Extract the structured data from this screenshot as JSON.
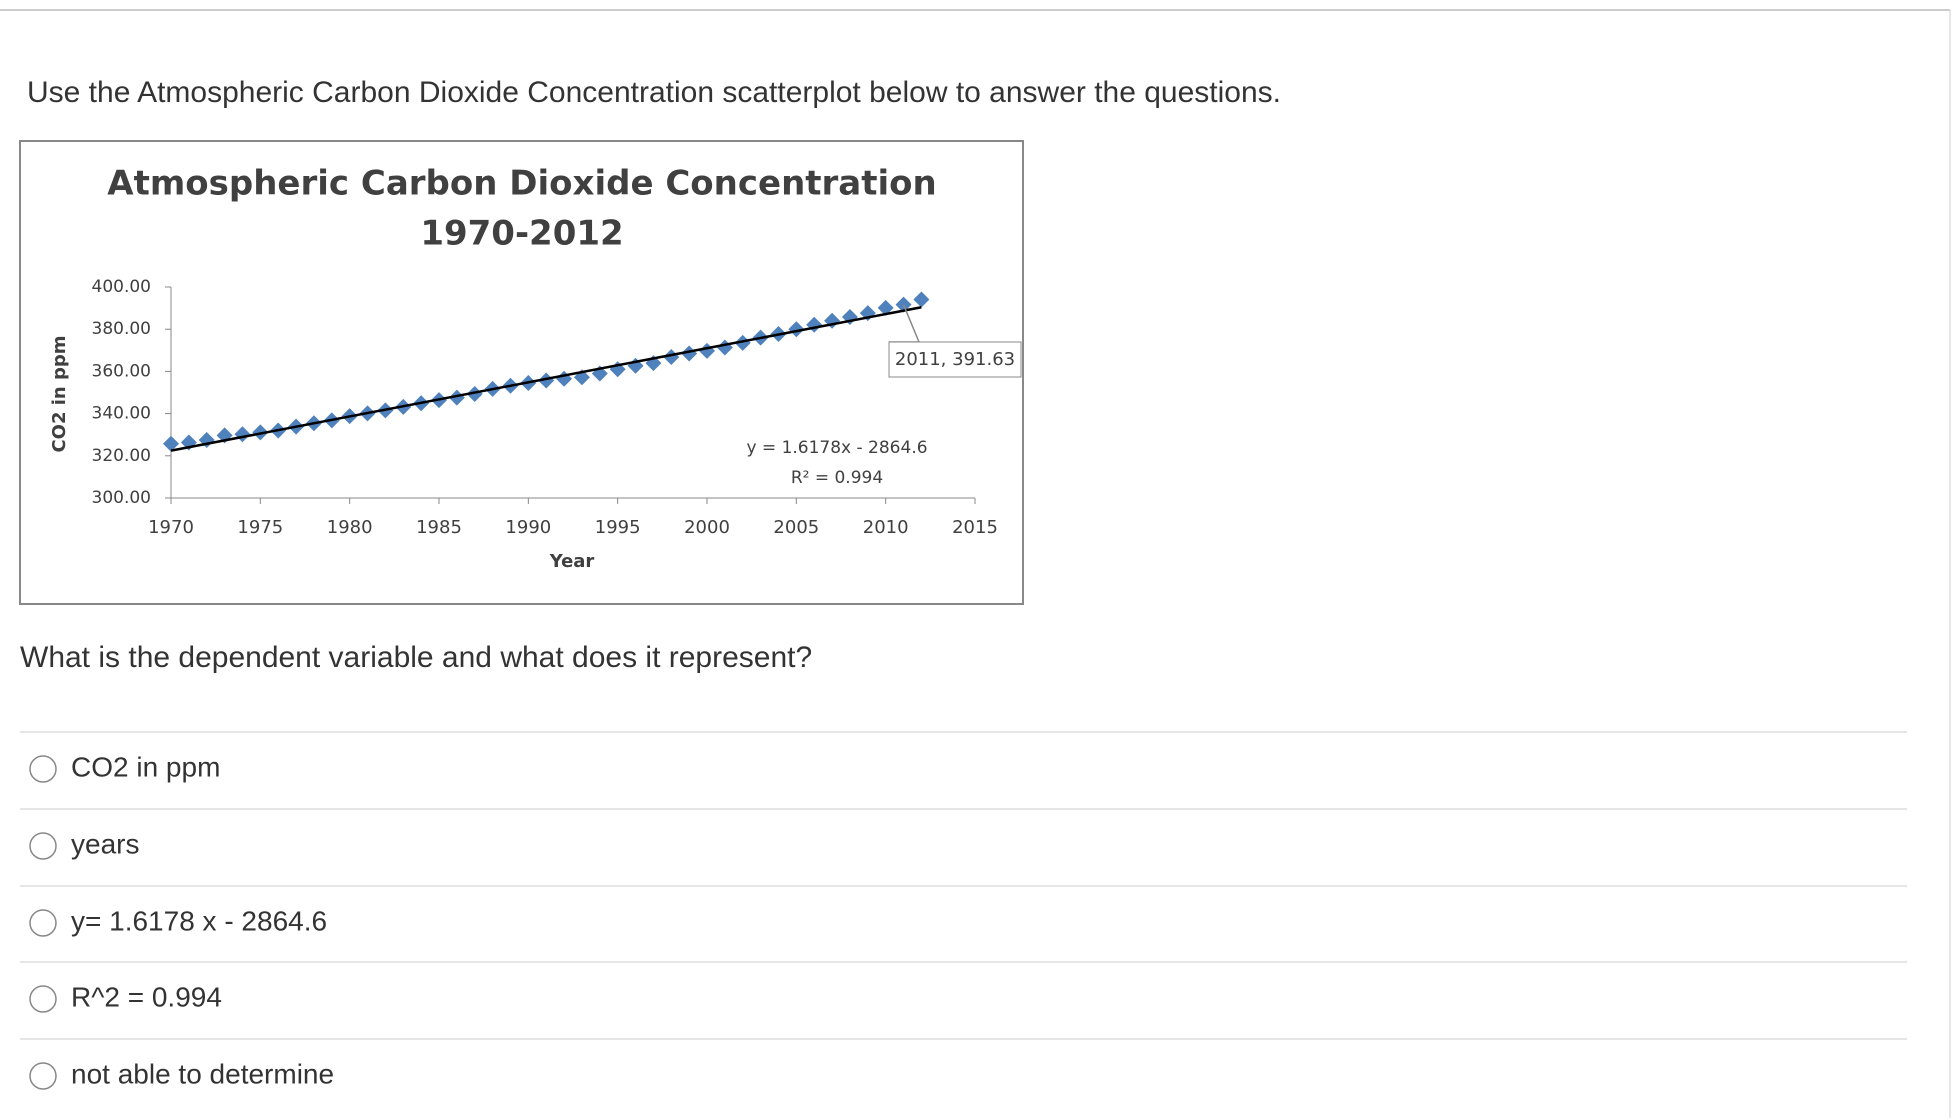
{
  "question_intro": "Use the Atmospheric Carbon Dioxide Concentration scatterplot below to answer the questions.",
  "chart_data": {
    "type": "scatter",
    "title": "Atmospheric Carbon Dioxide Concentration",
    "subtitle": "1970-2012",
    "x_label": "Year",
    "y_label": "CO2 in ppm",
    "x": [
      1970,
      1971,
      1972,
      1973,
      1974,
      1975,
      1976,
      1977,
      1978,
      1979,
      1980,
      1981,
      1982,
      1983,
      1984,
      1985,
      1986,
      1987,
      1988,
      1989,
      1990,
      1991,
      1992,
      1993,
      1994,
      1995,
      1996,
      1997,
      1998,
      1999,
      2000,
      2001,
      2002,
      2003,
      2004,
      2005,
      2006,
      2007,
      2008,
      2009,
      2010,
      2011,
      2012
    ],
    "series": [
      {
        "name": "CO2",
        "color": "#4f81bd",
        "values": [
          325.7,
          326.3,
          327.5,
          329.7,
          330.2,
          331.1,
          332.0,
          333.8,
          335.4,
          336.8,
          338.8,
          340.1,
          341.5,
          343.2,
          344.9,
          346.4,
          347.6,
          349.3,
          351.7,
          353.2,
          354.5,
          355.7,
          356.5,
          357.2,
          359.0,
          361.0,
          362.7,
          363.9,
          366.8,
          368.5,
          369.7,
          371.3,
          373.5,
          376.0,
          377.7,
          380.0,
          382.1,
          384.0,
          385.8,
          387.6,
          390.1,
          391.63,
          394.1
        ]
      }
    ],
    "annotation": {
      "text": "2011, 391.63",
      "x": 2011,
      "y": 391.63
    },
    "trendline": {
      "slope": 1.6178,
      "intercept": -2864.6,
      "color": "#000000",
      "equation": "y = 1.6178x - 2864.6",
      "r_squared": "R² = 0.994"
    },
    "xlim": [
      1970,
      2015
    ],
    "xticks": [
      1970,
      1975,
      1980,
      1985,
      1990,
      1995,
      2000,
      2005,
      2010,
      2015
    ],
    "ylim": [
      300,
      400
    ],
    "yticks": [
      {
        "value": 300,
        "label": "300.00"
      },
      {
        "value": 320,
        "label": "320.00"
      },
      {
        "value": 340,
        "label": "340.00"
      },
      {
        "value": 360,
        "label": "360.00"
      },
      {
        "value": 380,
        "label": "380.00"
      },
      {
        "value": 400,
        "label": "400.00"
      }
    ],
    "grid": false
  },
  "question": "What is the dependent variable and what does it represent?",
  "options": [
    "CO2 in ppm",
    "years",
    "y= 1.6178 x - 2864.6",
    "R^2 = 0.994",
    "not able to determine"
  ]
}
